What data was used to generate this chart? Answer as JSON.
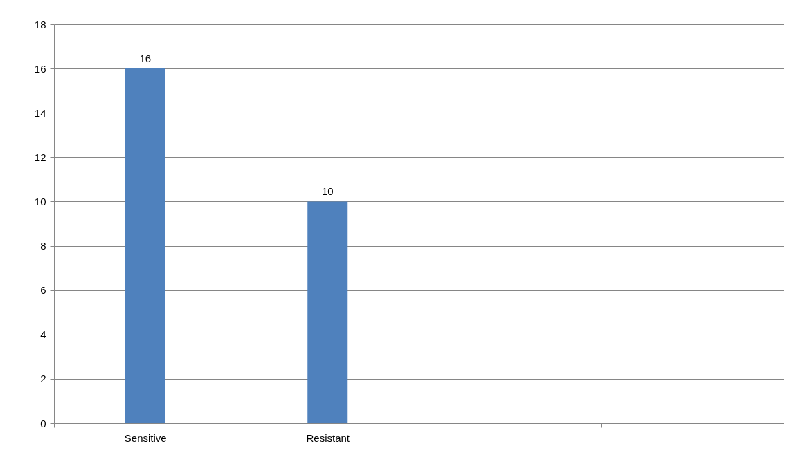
{
  "chart_data": {
    "type": "bar",
    "categories": [
      "Sensitive",
      "Resistant",
      null,
      null
    ],
    "values": [
      16,
      10,
      null,
      null
    ],
    "color": "#4f81bd",
    "ylim": [
      0,
      18
    ],
    "yticks": [
      0,
      2,
      4,
      6,
      8,
      10,
      12,
      14,
      16,
      18
    ],
    "grid": "y",
    "data_labels": true
  }
}
